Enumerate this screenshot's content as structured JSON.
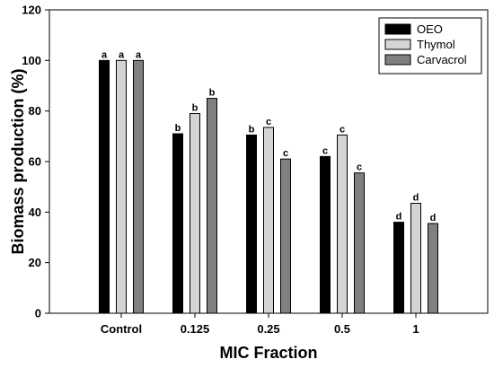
{
  "chart_data": {
    "type": "bar",
    "categories": [
      "Control",
      "0.125",
      "0.25",
      "0.5",
      "1"
    ],
    "series": [
      {
        "name": "OEO",
        "color": "#000000",
        "values": [
          100,
          71,
          70.5,
          62,
          36
        ],
        "labels": [
          "a",
          "b",
          "b",
          "c",
          "d"
        ]
      },
      {
        "name": "Thymol",
        "color": "#d4d4d4",
        "values": [
          100,
          79,
          73.5,
          70.5,
          43.5
        ],
        "labels": [
          "a",
          "b",
          "c",
          "c",
          "d"
        ]
      },
      {
        "name": "Carvacrol",
        "color": "#808080",
        "values": [
          100,
          85,
          61,
          55.5,
          35.5
        ],
        "labels": [
          "a",
          "b",
          "c",
          "c",
          "d"
        ]
      }
    ],
    "xlabel": "MIC Fraction",
    "ylabel": "Biomass production (%)",
    "ylim": [
      0,
      120
    ],
    "yticks": [
      "0",
      "20",
      "40",
      "60",
      "80",
      "100",
      "120"
    ],
    "grid": false,
    "legend_position": "top-right"
  }
}
